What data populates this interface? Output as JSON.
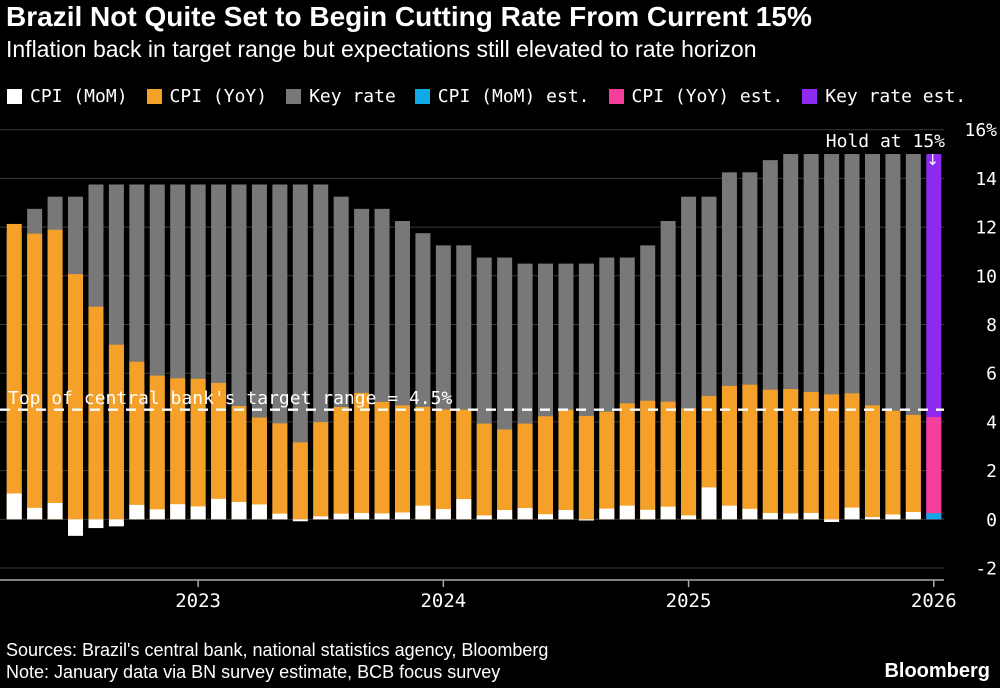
{
  "chart_data": {
    "type": "bar",
    "title": "Brazil Not Quite Set to Begin Cutting Rate From Current 15%",
    "subtitle": "Inflation back in target range but expectations still elevated to rate horizon",
    "legend": [
      {
        "label": "CPI (MoM)",
        "color": "#ffffff"
      },
      {
        "label": "CPI (YoY)",
        "color": "#f5a129"
      },
      {
        "label": "Key rate",
        "color": "#787878"
      },
      {
        "label": "CPI (MoM) est.",
        "color": "#11a9e8"
      },
      {
        "label": "CPI (YoY) est.",
        "color": "#f53d9b"
      },
      {
        "label": "Key rate est.",
        "color": "#8f2bf0"
      }
    ],
    "months": [
      "2022-04",
      "2022-05",
      "2022-06",
      "2022-07",
      "2022-08",
      "2022-09",
      "2022-10",
      "2022-11",
      "2022-12",
      "2023-01",
      "2023-02",
      "2023-03",
      "2023-04",
      "2023-05",
      "2023-06",
      "2023-07",
      "2023-08",
      "2023-09",
      "2023-10",
      "2023-11",
      "2023-12",
      "2024-01",
      "2024-02",
      "2024-03",
      "2024-04",
      "2024-05",
      "2024-06",
      "2024-07",
      "2024-08",
      "2024-09",
      "2024-10",
      "2024-11",
      "2024-12",
      "2025-01",
      "2025-02",
      "2025-03",
      "2025-04",
      "2025-05",
      "2025-06",
      "2025-07",
      "2025-08",
      "2025-09",
      "2025-10",
      "2025-11",
      "2025-12",
      "2026-01"
    ],
    "series": [
      {
        "id": "key-rate",
        "name": "Key rate",
        "color": "#787878",
        "start": 0,
        "values": [
          11.75,
          12.75,
          13.25,
          13.25,
          13.75,
          13.75,
          13.75,
          13.75,
          13.75,
          13.75,
          13.75,
          13.75,
          13.75,
          13.75,
          13.75,
          13.75,
          13.25,
          12.75,
          12.75,
          12.25,
          11.75,
          11.25,
          11.25,
          10.75,
          10.75,
          10.5,
          10.5,
          10.5,
          10.5,
          10.75,
          10.75,
          11.25,
          12.25,
          13.25,
          13.25,
          14.25,
          14.25,
          14.75,
          15,
          15,
          15,
          15,
          15,
          15,
          15
        ]
      },
      {
        "id": "key-rate-est",
        "name": "Key rate est.",
        "color": "#8f2bf0",
        "start": 45,
        "values": [
          15
        ]
      },
      {
        "id": "cpi-yoy",
        "name": "CPI (YoY)",
        "color": "#f5a129",
        "start": 0,
        "values": [
          12.13,
          11.73,
          11.89,
          10.07,
          8.73,
          7.17,
          6.47,
          5.9,
          5.79,
          5.77,
          5.6,
          4.65,
          4.18,
          3.94,
          3.16,
          3.99,
          4.61,
          5.19,
          4.82,
          4.68,
          4.62,
          4.51,
          4.5,
          3.93,
          3.69,
          3.93,
          4.23,
          4.5,
          4.24,
          4.42,
          4.76,
          4.87,
          4.83,
          4.56,
          5.06,
          5.48,
          5.53,
          5.32,
          5.35,
          5.23,
          5.13,
          5.17,
          4.68,
          4.46,
          4.29
        ]
      },
      {
        "id": "cpi-yoy-est",
        "name": "CPI (YoY) est.",
        "color": "#f53d9b",
        "start": 45,
        "values": [
          4.2
        ]
      },
      {
        "id": "cpi-mom",
        "name": "CPI (MoM)",
        "color": "#ffffff",
        "start": 0,
        "values": [
          1.06,
          0.47,
          0.67,
          -0.68,
          -0.36,
          -0.29,
          0.59,
          0.41,
          0.62,
          0.53,
          0.84,
          0.71,
          0.61,
          0.23,
          -0.08,
          0.12,
          0.23,
          0.26,
          0.24,
          0.28,
          0.56,
          0.42,
          0.83,
          0.16,
          0.38,
          0.46,
          0.21,
          0.38,
          -0.02,
          0.44,
          0.56,
          0.39,
          0.52,
          0.16,
          1.31,
          0.56,
          0.43,
          0.26,
          0.24,
          0.26,
          -0.11,
          0.48,
          0.09,
          0.2,
          0.3
        ]
      },
      {
        "id": "cpi-mom-est",
        "name": "CPI (MoM) est.",
        "color": "#11a9e8",
        "start": 45,
        "values": [
          0.25
        ]
      }
    ],
    "y_axis": {
      "ticks": [
        -2,
        0,
        2,
        4,
        6,
        8,
        10,
        12,
        14,
        16
      ],
      "labels": [
        "-2",
        "0",
        "2",
        "4",
        "6",
        "8",
        "10",
        "12",
        "14",
        "16%"
      ],
      "unit": "%"
    },
    "x_axis": {
      "labels": [
        "2023",
        "2024",
        "2025",
        "2026"
      ]
    },
    "ylim": [
      -2.5,
      16.3
    ],
    "target_line": {
      "value": 4.5,
      "label": "Top of central bank's target range = 4.5%"
    },
    "hold_annotation": {
      "label": "Hold at 15%",
      "arrow": "↓"
    },
    "colors": {
      "background": "#000000",
      "gridline": "#3a3a3a",
      "axis": "#aaaaaa",
      "target_line": "#ffffff"
    }
  },
  "footer": {
    "sources": "Sources: Brazil's central bank, national statistics agency, Bloomberg",
    "note": "Note: January data via BN survey estimate, BCB focus survey",
    "brand": "Bloomberg"
  }
}
